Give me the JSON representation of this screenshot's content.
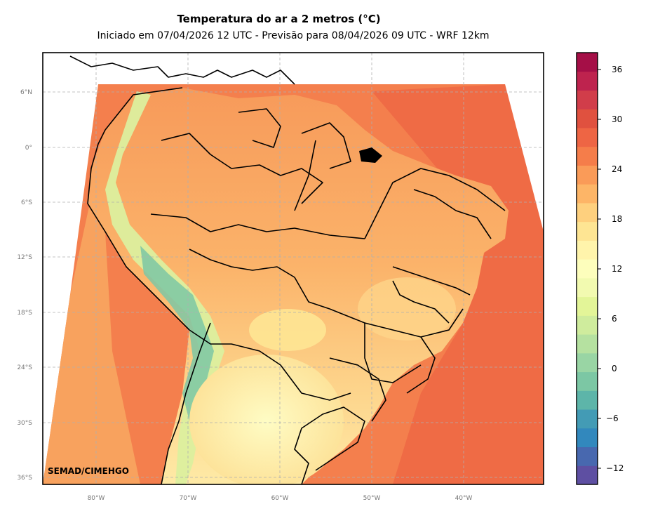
{
  "header": {
    "title": "Temperatura do ar a 2 metros (°C)",
    "subtitle": "Iniciado em 07/04/2026 12 UTC - Previsão para 08/04/2026 09 UTC - WRF 12km"
  },
  "map": {
    "lat_ticks": [
      "6°N",
      "0°",
      "6°S",
      "12°S",
      "18°S",
      "24°S",
      "30°S",
      "36°S"
    ],
    "lon_ticks": [
      "80°W",
      "70°W",
      "60°W",
      "50°W",
      "40°W"
    ],
    "credit": "SEMAD/CIMEHGO",
    "ocean_color": "#f47b4b",
    "land_base_color": "#f9a862",
    "andes_cold_color": "#5ab4ac",
    "south_cool_color": "#fef9b7"
  },
  "colorbar": {
    "ticks": [
      "36",
      "30",
      "24",
      "18",
      "12",
      "6",
      "0",
      "−6",
      "−12"
    ],
    "min": -14,
    "max": 38,
    "step": 2,
    "colors": [
      "#5e4fa2",
      "#4868af",
      "#3288bd",
      "#439bb5",
      "#5db5a9",
      "#7cc7a4",
      "#99d5a4",
      "#b5e1a0",
      "#cfec9d",
      "#e3f598",
      "#f2fab0",
      "#fdfebc",
      "#fff4ab",
      "#fee593",
      "#fed07e",
      "#fdb567",
      "#fa9b58",
      "#f57d4a",
      "#ee6544",
      "#e0513f",
      "#d13d4a",
      "#be234e",
      "#a50f47"
    ]
  }
}
